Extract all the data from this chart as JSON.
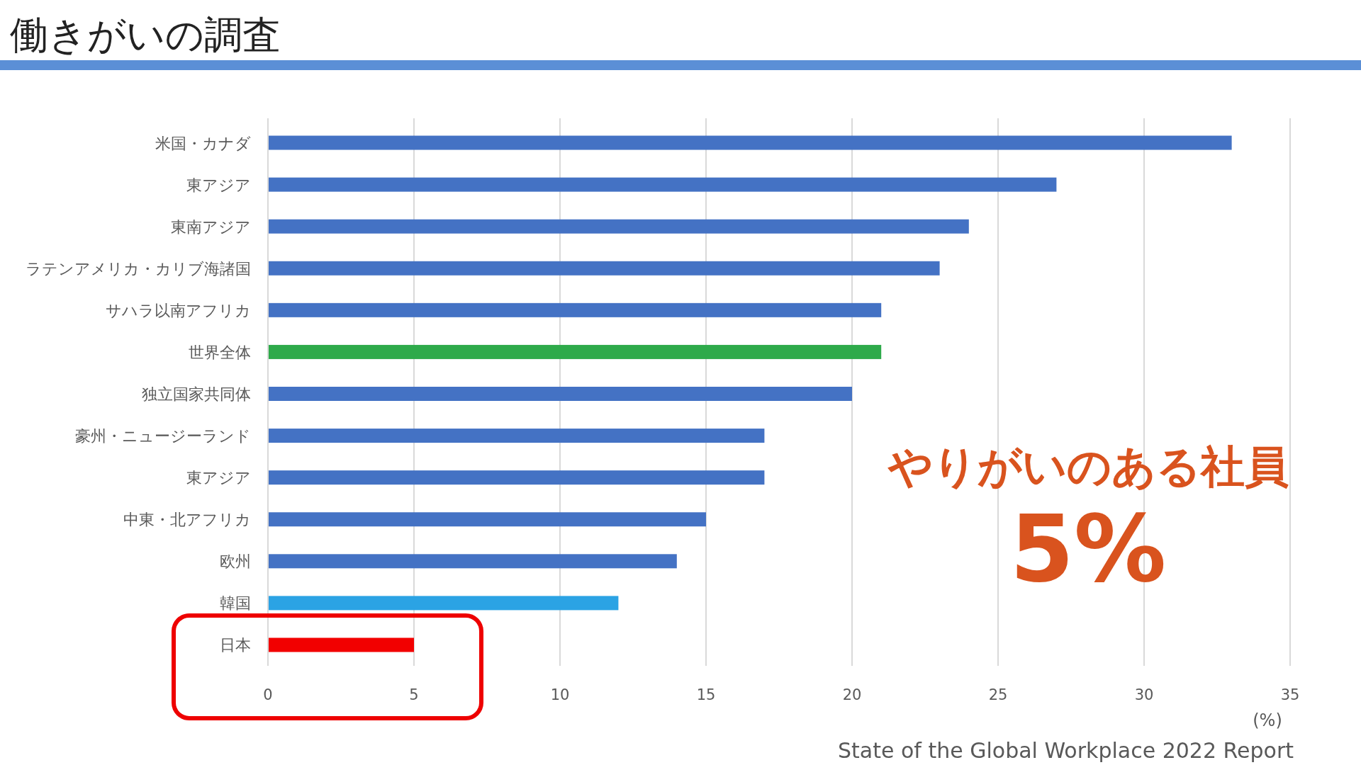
{
  "chart_data": {
    "type": "bar",
    "orientation": "horizontal",
    "title": "働きがいの調査",
    "categories": [
      "米国・カナダ",
      "東アジア",
      "東南アジア",
      "ラテンアメリカ・カリブ海諸国",
      "サハラ以南アフリカ",
      "世界全体",
      "独立国家共同体",
      "豪州・ニュージーランド",
      "東アジア",
      "中東・北アフリカ",
      "欧州",
      "韓国",
      "日本"
    ],
    "values": [
      33,
      27,
      24,
      23,
      21,
      21,
      20,
      17,
      17,
      15,
      14,
      12,
      5
    ],
    "colors": [
      "#4472c4",
      "#4472c4",
      "#4472c4",
      "#4472c4",
      "#4472c4",
      "#2eaa4a",
      "#4472c4",
      "#4472c4",
      "#4472c4",
      "#4472c4",
      "#4472c4",
      "#2ba3e4",
      "#f20000"
    ],
    "xlim": [
      0,
      35
    ],
    "xticks": [
      0,
      5,
      10,
      15,
      20,
      25,
      30,
      35
    ],
    "grid": "x",
    "xlabel": "(%)",
    "annotations": [
      "やりがいのある社員",
      "5%",
      "State of the Global Workplace 2022 Report"
    ]
  }
}
